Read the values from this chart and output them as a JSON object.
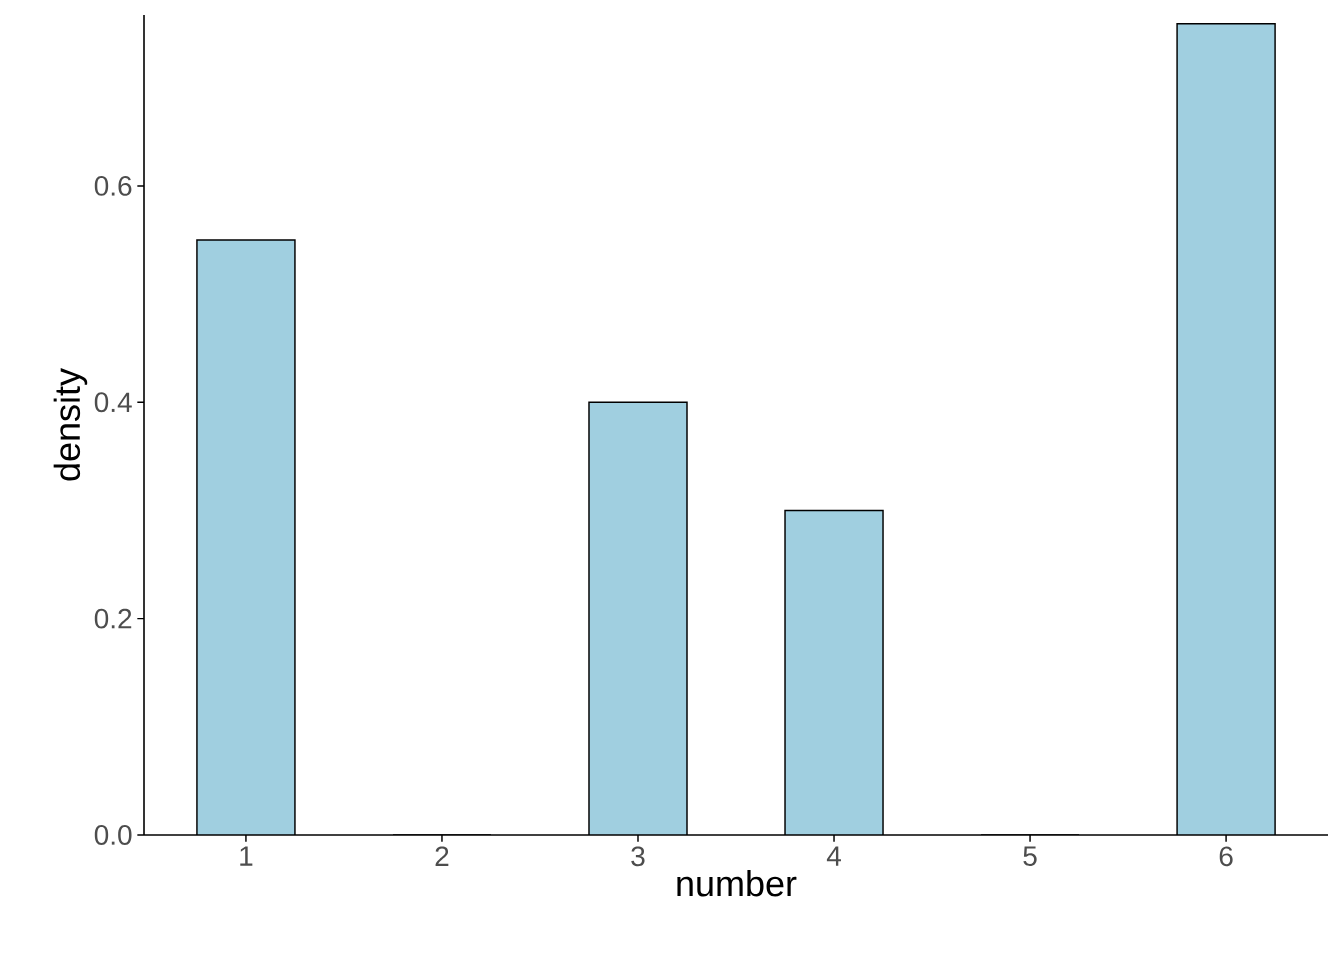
{
  "chart_data": {
    "type": "bar",
    "xlabel": "number",
    "ylabel": "density",
    "x": [
      1,
      2,
      3,
      4,
      5,
      6
    ],
    "values": [
      0.55,
      0,
      0.4,
      0.3,
      0,
      0.75
    ],
    "color": "#a0cfe0",
    "xlim": [
      0.48,
      6.52
    ],
    "ylim": [
      0,
      0.758
    ],
    "xticks": [
      1,
      2,
      3,
      4,
      5,
      6
    ],
    "yticks": [
      {
        "value": 0,
        "label": "0.0"
      },
      0.2,
      0.4,
      0.6
    ]
  }
}
